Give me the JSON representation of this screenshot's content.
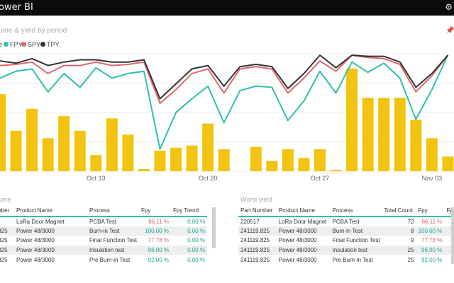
{
  "app": {
    "title": "ower BI",
    "settings_icon": "gear-icon"
  },
  "chart": {
    "title": "ume & yield by period",
    "pin_icon": "pin-icon"
  },
  "legend": [
    {
      "label": "e",
      "color": "#f2c40f"
    },
    {
      "label": "FPY",
      "color": "#2dbfae"
    },
    {
      "label": "SPY",
      "color": "#e0676f"
    },
    {
      "label": "TPY",
      "color": "#333333"
    }
  ],
  "chart_data": {
    "type": "bar",
    "xlabel": "",
    "ylabel": "",
    "x_tick_labels": [
      {
        "label": "Oct 13",
        "index": 6
      },
      {
        "label": "Oct 20",
        "index": 13
      },
      {
        "label": "Oct 27",
        "index": 20
      },
      {
        "label": "Nov 03",
        "index": 27
      }
    ],
    "categories_count": 29,
    "volume": [
      105,
      55,
      85,
      45,
      75,
      55,
      22,
      72,
      50,
      3,
      28,
      32,
      35,
      65,
      30,
      0,
      33,
      14,
      30,
      18,
      30,
      2,
      140,
      100,
      100,
      100,
      70,
      45,
      20
    ],
    "volume_max": 160,
    "series": [
      {
        "name": "FPY",
        "color": "#2dbfae",
        "values": [
          80,
          86,
          88,
          68,
          84,
          72,
          89,
          80,
          84,
          86,
          18,
          50,
          62,
          73,
          41,
          69,
          73,
          72,
          43,
          60,
          86,
          67,
          94,
          85,
          93,
          80,
          44,
          70,
          100
        ]
      },
      {
        "name": "SPY",
        "color": "#e0676f",
        "values": [
          91,
          92,
          94,
          84,
          91,
          91,
          94,
          91,
          92,
          94,
          58,
          70,
          84,
          88,
          67,
          88,
          90,
          88,
          67,
          80,
          95,
          86,
          100,
          98,
          97,
          92,
          68,
          82,
          100
        ]
      },
      {
        "name": "TPY",
        "color": "#333333",
        "values": [
          95,
          93,
          97,
          91,
          94,
          96,
          96,
          94,
          94,
          96,
          62,
          75,
          88,
          91,
          73,
          90,
          92,
          90,
          71,
          84,
          100,
          89,
          100,
          99,
          99,
          94,
          72,
          84,
          100
        ]
      }
    ],
    "y_range": [
      0,
      100
    ],
    "grid": true
  },
  "left_table": {
    "title": "ume",
    "columns": [
      "mber",
      "Product Name",
      "Process",
      "Fpy",
      "Fpy Trend"
    ],
    "rows": [
      {
        "id": "",
        "product": "LoRa Door Magnet",
        "process": "PCBA Test",
        "fpy": "86.11 %",
        "trend": "0.00 %",
        "fpy_color": "red"
      },
      {
        "id": ".825",
        "product": "Power 48/3000",
        "process": "Burn-in Test",
        "fpy": "100.00 %",
        "trend": "0.00 %",
        "fpy_color": "teal"
      },
      {
        "id": ".825",
        "product": "Power 48/3000",
        "process": "Final Function Test",
        "fpy": "77.78 %",
        "trend": "0.00 %",
        "fpy_color": "red"
      },
      {
        "id": ".825",
        "product": "Power 48/3000",
        "process": "Insulation test",
        "fpy": "96.00 %",
        "trend": "0.00 %",
        "fpy_color": "teal"
      },
      {
        "id": ".825",
        "product": "Power 48/3000",
        "process": "Pre Burn-in Test",
        "fpy": "92.00 %",
        "trend": "0.00 %",
        "fpy_color": "teal"
      }
    ]
  },
  "right_table": {
    "title": "Worst yield",
    "columns": [
      "Part Number",
      "Product Name",
      "Process",
      "Total Count",
      "Fpy",
      "Fp"
    ],
    "rows": [
      {
        "part": "220517",
        "product": "LoRa Door Magnet",
        "process": "PCBA Test",
        "count": "72",
        "fpy": "86.11 %",
        "fpy_color": "red"
      },
      {
        "part": "241119.825",
        "product": "Power 48/3000",
        "process": "Burn-in Test",
        "count": "8",
        "fpy": "100.00 %",
        "fpy_color": "teal"
      },
      {
        "part": "241119.825",
        "product": "Power 48/3000",
        "process": "Final Function Test",
        "count": "9",
        "fpy": "77.78 %",
        "fpy_color": "red"
      },
      {
        "part": "241119.825",
        "product": "Power 48/3000",
        "process": "Insulation test",
        "count": "25",
        "fpy": "96.00 %",
        "fpy_color": "teal"
      },
      {
        "part": "241119.825",
        "product": "Power 48/3000",
        "process": "Pre Burn-in Test",
        "count": "25",
        "fpy": "92.00 %",
        "fpy_color": "teal"
      }
    ]
  }
}
